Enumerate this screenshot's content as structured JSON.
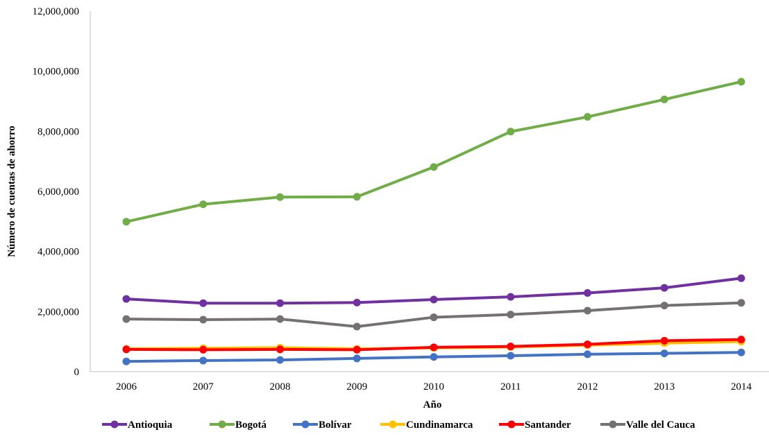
{
  "chart_data": {
    "type": "line",
    "title": "",
    "xlabel": "Año",
    "ylabel": "Número de cuentas de ahorro",
    "ylim": [
      0,
      12000000
    ],
    "y_ticks": [
      0,
      2000000,
      4000000,
      6000000,
      8000000,
      10000000,
      12000000
    ],
    "y_tick_labels": [
      "0",
      "2,000,000",
      "4,000,000",
      "6,000,000",
      "8,000,000",
      "10,000,000",
      "12,000,000"
    ],
    "x": [
      "2006",
      "2007",
      "2008",
      "2009",
      "2010",
      "2011",
      "2012",
      "2013",
      "2014"
    ],
    "grid": false,
    "legend_position": "bottom",
    "series": [
      {
        "name": "Antioquia",
        "color": "#7030A0",
        "values": [
          2420000,
          2280000,
          2280000,
          2300000,
          2400000,
          2490000,
          2620000,
          2790000,
          3110000
        ]
      },
      {
        "name": "Bogotá",
        "color": "#70AD47",
        "values": [
          4990000,
          5570000,
          5810000,
          5820000,
          6810000,
          7990000,
          8480000,
          9060000,
          9650000
        ]
      },
      {
        "name": "Bolívar",
        "color": "#4472C4",
        "values": [
          340000,
          370000,
          390000,
          440000,
          490000,
          530000,
          580000,
          610000,
          640000
        ]
      },
      {
        "name": "Cundinamarca",
        "color": "#FFC000",
        "values": [
          760000,
          780000,
          800000,
          760000,
          790000,
          820000,
          880000,
          950000,
          1000000
        ]
      },
      {
        "name": "Santander",
        "color": "#FF0000",
        "values": [
          740000,
          730000,
          740000,
          730000,
          810000,
          840000,
          910000,
          1030000,
          1070000
        ]
      },
      {
        "name": "Valle del Cauca",
        "color": "#767171",
        "values": [
          1750000,
          1730000,
          1750000,
          1500000,
          1810000,
          1900000,
          2030000,
          2200000,
          2290000
        ]
      }
    ]
  }
}
